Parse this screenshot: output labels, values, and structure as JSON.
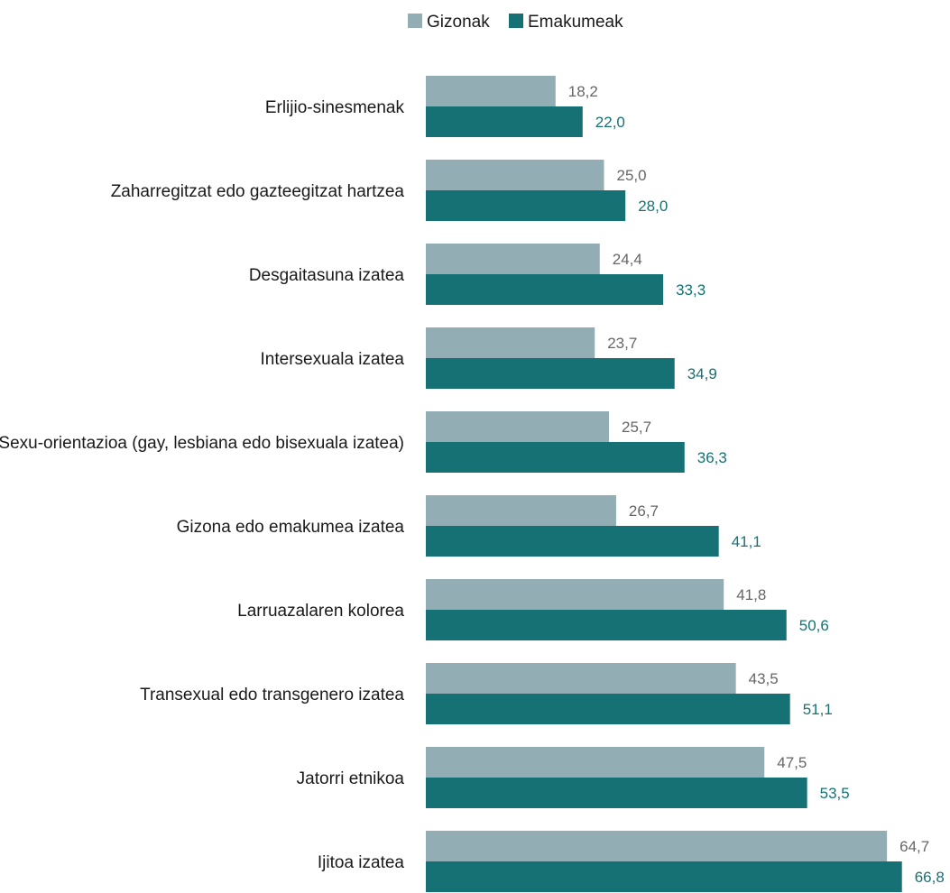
{
  "chart_data": {
    "type": "bar",
    "orientation": "horizontal",
    "categories": [
      "Erlijio-sinesmenak",
      "Zaharregitzat edo gazteegitzat hartzea",
      "Desgaitasuna izatea",
      "Intersexuala izatea",
      "Sexu-orientazioa (gay, lesbiana edo bisexuala izatea)",
      "Gizona edo emakumea izatea",
      "Larruazalaren kolorea",
      "Transexual edo transgenero izatea",
      "Jatorri etnikoa",
      "Ijitoa izatea"
    ],
    "series": [
      {
        "name": "Gizonak",
        "color": "#92adb3",
        "label_color": "#666666",
        "values": [
          18.2,
          25.0,
          24.4,
          23.7,
          25.7,
          26.7,
          41.8,
          43.5,
          47.5,
          64.7
        ],
        "labels": [
          "18,2",
          "25,0",
          "24,4",
          "23,7",
          "25,7",
          "26,7",
          "41,8",
          "43,5",
          "47,5",
          "64,7"
        ]
      },
      {
        "name": "Emakumeak",
        "color": "#167174",
        "label_color": "#167174",
        "values": [
          22.0,
          28.0,
          33.3,
          34.9,
          36.3,
          41.1,
          50.6,
          51.1,
          53.5,
          66.8
        ],
        "labels": [
          "22,0",
          "28,0",
          "33,3",
          "34,9",
          "36,3",
          "41,1",
          "50,6",
          "51,1",
          "53,5",
          "66,8"
        ]
      }
    ],
    "xlim": [
      0,
      70
    ],
    "grid": false,
    "legend_position": "top-center",
    "title": "",
    "xlabel": "",
    "ylabel": ""
  }
}
